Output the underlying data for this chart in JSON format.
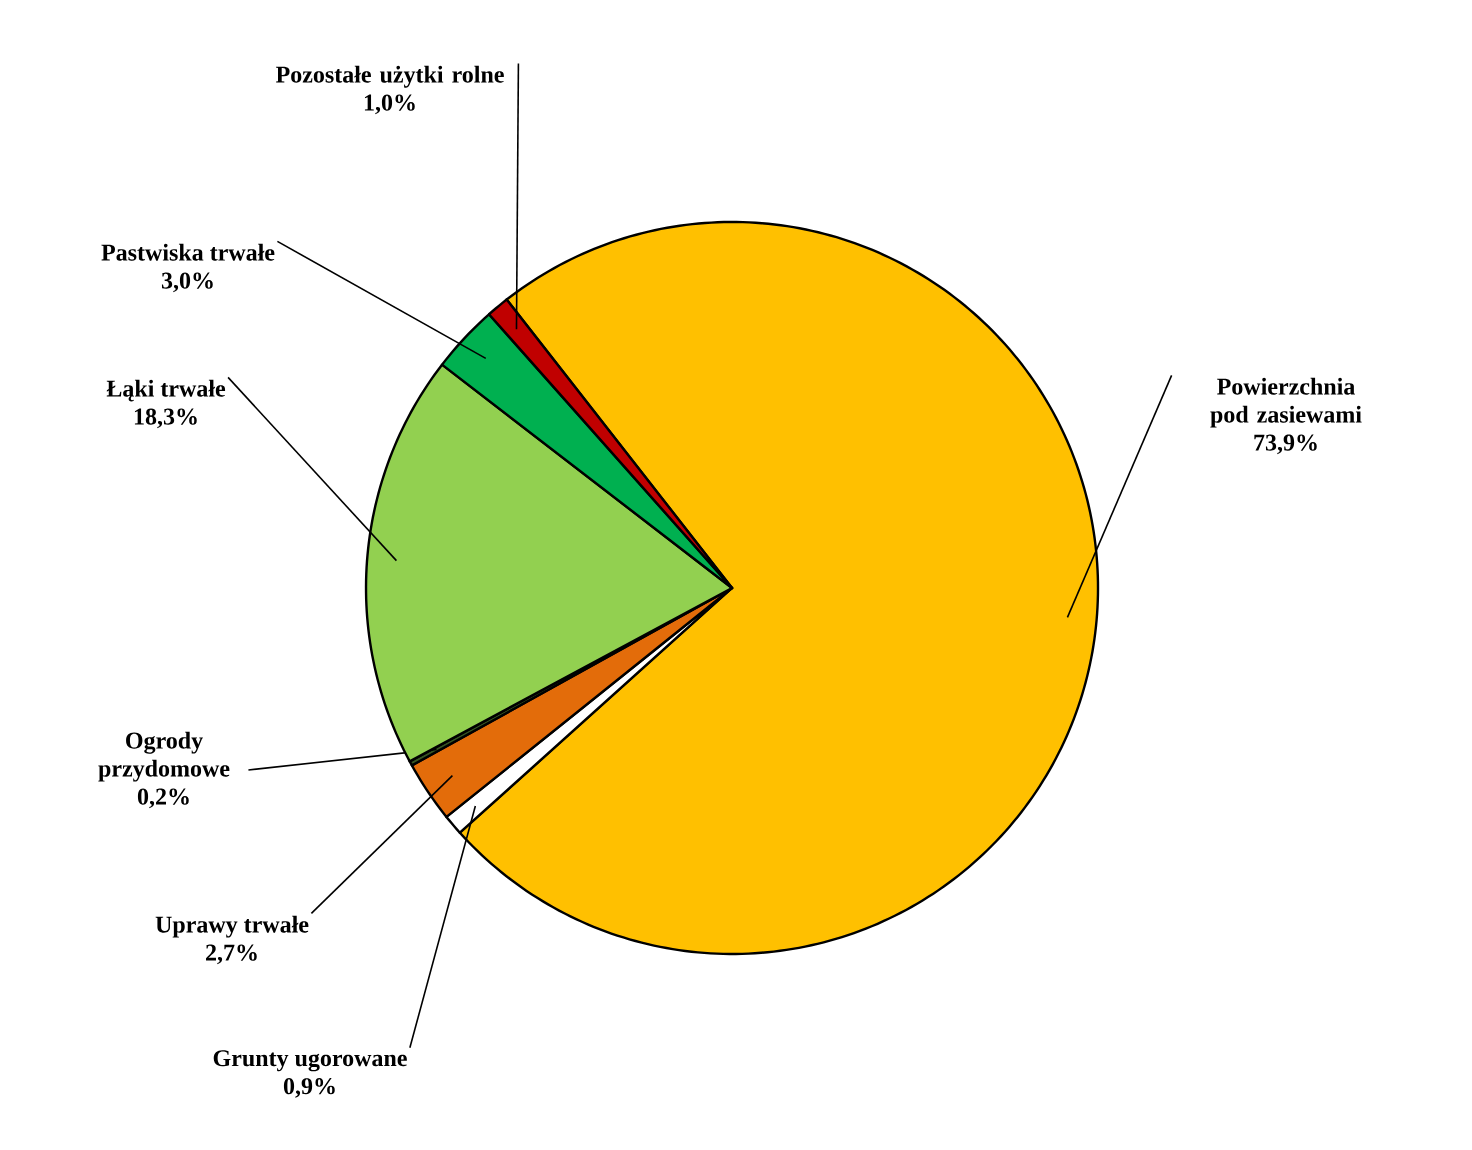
{
  "chart_data": {
    "type": "pie",
    "categories": [
      "Powierzchnia pod zasiewami",
      "Grunty ugorowane",
      "Uprawy trwałe",
      "Ogrody przydomowe",
      "Łąki trwałe",
      "Pastwiska trwałe",
      "Pozostałe użytki rolne"
    ],
    "values": [
      73.9,
      0.9,
      2.7,
      0.2,
      18.3,
      3.0,
      1.0
    ],
    "value_labels": [
      "73,9%",
      "0,9%",
      "2,7%",
      "0,2%",
      "18,3%",
      "3,0%",
      "1,0%"
    ],
    "colors": [
      "#ffc000",
      "#ffffff",
      "#e36c0a",
      "#375623",
      "#92d050",
      "#00b050",
      "#c00000"
    ]
  }
}
